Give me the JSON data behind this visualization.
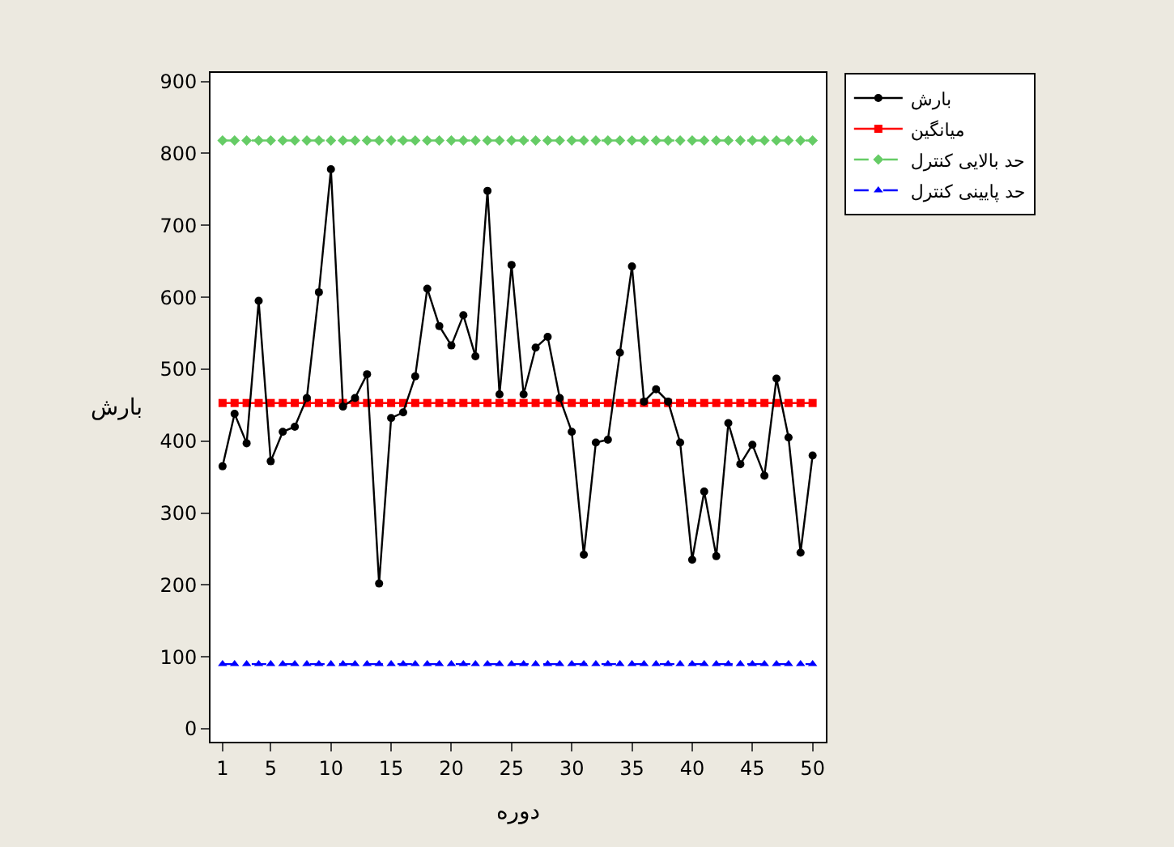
{
  "chart_data": {
    "type": "line",
    "xlabel": "دوره",
    "ylabel": "بارش",
    "x": [
      1,
      2,
      3,
      4,
      5,
      6,
      7,
      8,
      9,
      10,
      11,
      12,
      13,
      14,
      15,
      16,
      17,
      18,
      19,
      20,
      21,
      22,
      23,
      24,
      25,
      26,
      27,
      28,
      29,
      30,
      31,
      32,
      33,
      34,
      35,
      36,
      37,
      38,
      39,
      40,
      41,
      42,
      43,
      44,
      45,
      46,
      47,
      48,
      49,
      50
    ],
    "series": [
      {
        "name": "بارش",
        "color": "#000000",
        "marker": "circle",
        "line_style": "solid",
        "values": [
          365,
          438,
          397,
          595,
          372,
          413,
          420,
          460,
          607,
          778,
          448,
          460,
          493,
          202,
          432,
          440,
          490,
          612,
          560,
          533,
          575,
          518,
          748,
          465,
          645,
          465,
          530,
          545,
          460,
          413,
          242,
          398,
          402,
          523,
          643,
          455,
          472,
          455,
          398,
          235,
          330,
          240,
          425,
          368,
          395,
          352,
          487,
          405,
          245,
          380
        ]
      },
      {
        "name": "میانگین",
        "color": "#ff0000",
        "marker": "square",
        "line_style": "solid",
        "values": [
          453,
          453,
          453,
          453,
          453,
          453,
          453,
          453,
          453,
          453,
          453,
          453,
          453,
          453,
          453,
          453,
          453,
          453,
          453,
          453,
          453,
          453,
          453,
          453,
          453,
          453,
          453,
          453,
          453,
          453,
          453,
          453,
          453,
          453,
          453,
          453,
          453,
          453,
          453,
          453,
          453,
          453,
          453,
          453,
          453,
          453,
          453,
          453,
          453,
          453
        ]
      },
      {
        "name": "حد بالایی کنترل",
        "color": "#66cc66",
        "marker": "diamond",
        "line_style": "dashed",
        "values": [
          818,
          818,
          818,
          818,
          818,
          818,
          818,
          818,
          818,
          818,
          818,
          818,
          818,
          818,
          818,
          818,
          818,
          818,
          818,
          818,
          818,
          818,
          818,
          818,
          818,
          818,
          818,
          818,
          818,
          818,
          818,
          818,
          818,
          818,
          818,
          818,
          818,
          818,
          818,
          818,
          818,
          818,
          818,
          818,
          818,
          818,
          818,
          818,
          818,
          818
        ]
      },
      {
        "name": "حد پایینی کنترل",
        "color": "#0000ff",
        "marker": "triangle",
        "line_style": "dashed",
        "values": [
          90,
          90,
          90,
          90,
          90,
          90,
          90,
          90,
          90,
          90,
          90,
          90,
          90,
          90,
          90,
          90,
          90,
          90,
          90,
          90,
          90,
          90,
          90,
          90,
          90,
          90,
          90,
          90,
          90,
          90,
          90,
          90,
          90,
          90,
          90,
          90,
          90,
          90,
          90,
          90,
          90,
          90,
          90,
          90,
          90,
          90,
          90,
          90,
          90,
          90
        ]
      }
    ],
    "xlim": [
      0,
      51.1
    ],
    "xticks": [
      1,
      5,
      10,
      15,
      20,
      25,
      30,
      35,
      40,
      45,
      50
    ],
    "ylim": [
      -18,
      912
    ],
    "yticks": [
      0,
      100,
      200,
      300,
      400,
      500,
      600,
      700,
      800,
      900
    ],
    "legend": "top right"
  }
}
